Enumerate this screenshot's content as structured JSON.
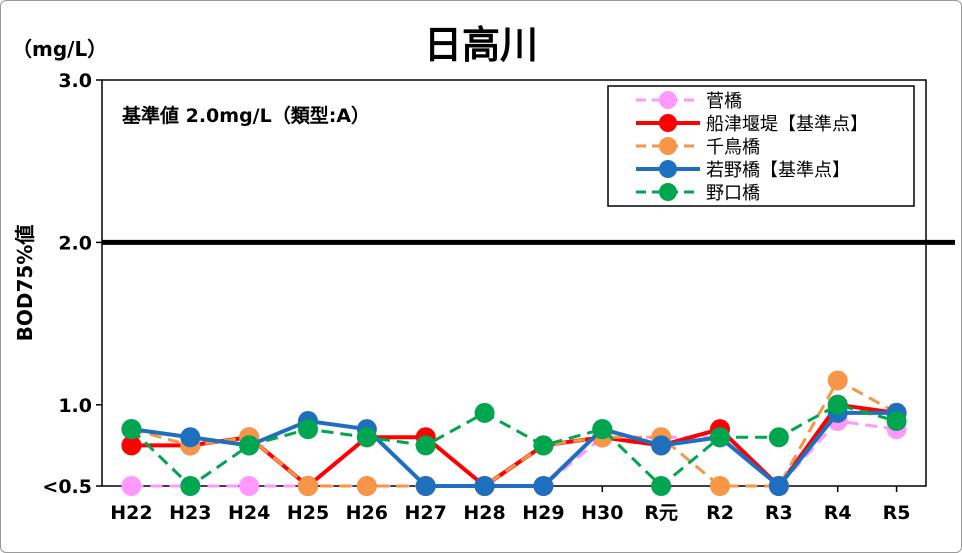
{
  "chart_data": {
    "type": "line",
    "title": "日高川",
    "unit_label": "（mg/L）",
    "ylabel": "BOD75%値",
    "annotation": "基準値  2.0mg/L（類型:A）",
    "reference_line": 2.0,
    "ylim": [
      0.5,
      3.0
    ],
    "y_ticks": [
      {
        "value": 0.5,
        "label": "<0.5"
      },
      {
        "value": 1.0,
        "label": "1.0"
      },
      {
        "value": 2.0,
        "label": "2.0"
      },
      {
        "value": 3.0,
        "label": "3.0"
      }
    ],
    "categories": [
      "H22",
      "H23",
      "H24",
      "H25",
      "H26",
      "H27",
      "H28",
      "H29",
      "H30",
      "R元",
      "R2",
      "R3",
      "R4",
      "R5"
    ],
    "legend_position": "top-right",
    "series": [
      {
        "name": "菅橋",
        "color": "#ff99ff",
        "dashed": true,
        "width": 3,
        "values": [
          0.5,
          0.5,
          0.5,
          0.5,
          0.5,
          0.5,
          0.5,
          0.5,
          0.8,
          0.8,
          0.8,
          0.5,
          0.9,
          0.85
        ]
      },
      {
        "name": "船津堰堤【基準点】",
        "color": "#ff0000",
        "dashed": false,
        "width": 4,
        "values": [
          0.75,
          0.75,
          0.8,
          0.5,
          0.8,
          0.8,
          0.5,
          0.75,
          0.8,
          0.75,
          0.85,
          0.5,
          1.0,
          0.95
        ]
      },
      {
        "name": "千鳥橋",
        "color": "#f79646",
        "dashed": true,
        "width": 3,
        "values": [
          0.85,
          0.75,
          0.8,
          0.5,
          0.5,
          0.5,
          0.5,
          0.75,
          0.8,
          0.8,
          0.5,
          0.5,
          1.15,
          0.95
        ]
      },
      {
        "name": "若野橋【基準点】",
        "color": "#1f6fbf",
        "dashed": false,
        "width": 4,
        "values": [
          0.85,
          0.8,
          0.75,
          0.9,
          0.85,
          0.5,
          0.5,
          0.5,
          0.85,
          0.75,
          0.8,
          0.5,
          0.95,
          0.95
        ]
      },
      {
        "name": "野口橋",
        "color": "#00a550",
        "dashed": true,
        "width": 3,
        "values": [
          0.85,
          0.5,
          0.75,
          0.85,
          0.8,
          0.75,
          0.95,
          0.75,
          0.85,
          0.5,
          0.8,
          0.8,
          1.0,
          0.9
        ]
      }
    ]
  }
}
